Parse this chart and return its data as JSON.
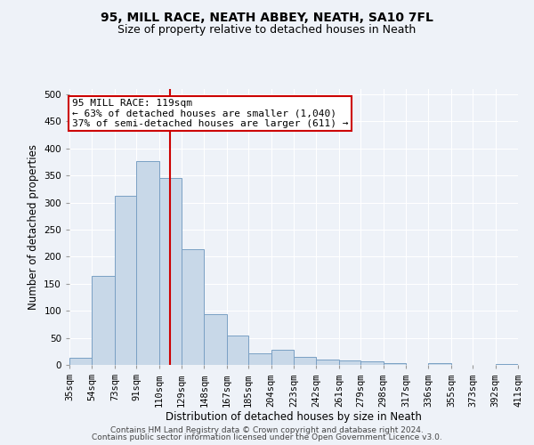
{
  "title1": "95, MILL RACE, NEATH ABBEY, NEATH, SA10 7FL",
  "title2": "Size of property relative to detached houses in Neath",
  "xlabel": "Distribution of detached houses by size in Neath",
  "ylabel": "Number of detached properties",
  "bin_labels": [
    "35sqm",
    "54sqm",
    "73sqm",
    "91sqm",
    "110sqm",
    "129sqm",
    "148sqm",
    "167sqm",
    "185sqm",
    "204sqm",
    "223sqm",
    "242sqm",
    "261sqm",
    "279sqm",
    "298sqm",
    "317sqm",
    "336sqm",
    "355sqm",
    "373sqm",
    "392sqm",
    "411sqm"
  ],
  "bar_heights": [
    13,
    165,
    313,
    377,
    346,
    214,
    93,
    54,
    22,
    28,
    14,
    10,
    9,
    6,
    4,
    0,
    3,
    0,
    0,
    1
  ],
  "bin_edges": [
    35,
    54,
    73,
    91,
    110,
    129,
    148,
    167,
    185,
    204,
    223,
    242,
    261,
    279,
    298,
    317,
    336,
    355,
    373,
    392,
    411
  ],
  "property_size": 119,
  "bar_color": "#c8d8e8",
  "bar_edge_color": "#7aa0c4",
  "vline_color": "#cc0000",
  "annotation_line1": "95 MILL RACE: 119sqm",
  "annotation_line2": "← 63% of detached houses are smaller (1,040)",
  "annotation_line3": "37% of semi-detached houses are larger (611) →",
  "annotation_box_color": "#ffffff",
  "annotation_box_edge_color": "#cc0000",
  "ylim": [
    0,
    510
  ],
  "yticks": [
    0,
    50,
    100,
    150,
    200,
    250,
    300,
    350,
    400,
    450,
    500
  ],
  "footer1": "Contains HM Land Registry data © Crown copyright and database right 2024.",
  "footer2": "Contains public sector information licensed under the Open Government Licence v3.0.",
  "background_color": "#eef2f8",
  "grid_color": "#ffffff",
  "title1_fontsize": 10,
  "title2_fontsize": 9,
  "axis_label_fontsize": 8.5,
  "tick_fontsize": 7.5,
  "annotation_fontsize": 8,
  "footer_fontsize": 6.5
}
